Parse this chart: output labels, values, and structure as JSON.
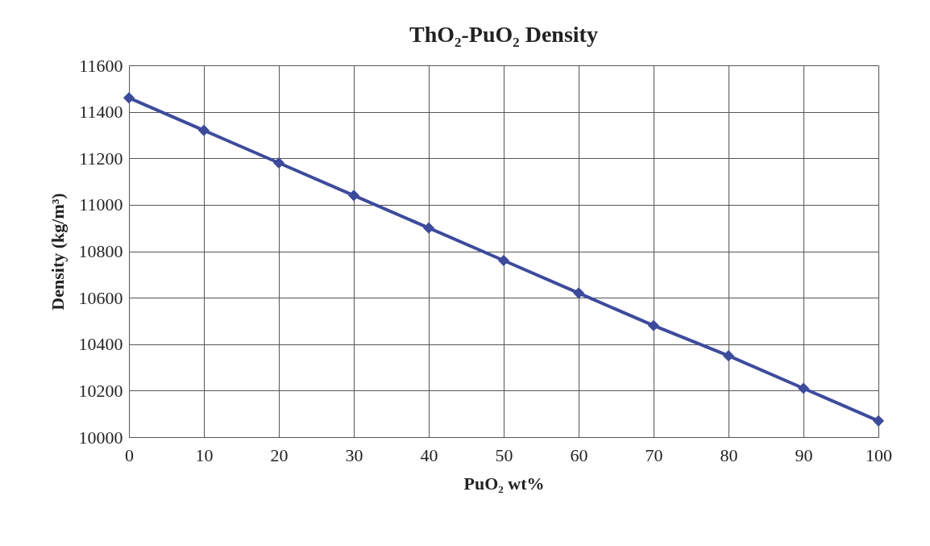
{
  "chart_data": {
    "type": "line",
    "title": "ThO₂-PuO₂ Density",
    "xlabel": "PuO₂ wt%",
    "ylabel": "Density (kg/m³)",
    "x": [
      0,
      10,
      20,
      30,
      40,
      50,
      60,
      70,
      80,
      90,
      100
    ],
    "series": [
      {
        "color": "#3d4b9c",
        "values": [
          11460,
          11320,
          11180,
          11040,
          10900,
          10760,
          10620,
          10480,
          10350,
          10210,
          10070
        ]
      }
    ],
    "xlim": [
      0,
      100
    ],
    "xticks": [
      0,
      10,
      20,
      30,
      40,
      50,
      60,
      70,
      80,
      90,
      100
    ],
    "ylim": [
      10000,
      11600
    ],
    "yticks": [
      10000,
      10200,
      10400,
      10600,
      10800,
      11000,
      11200,
      11400,
      11600
    ],
    "grid": true,
    "marker": "diamond",
    "line_style": "solid"
  }
}
